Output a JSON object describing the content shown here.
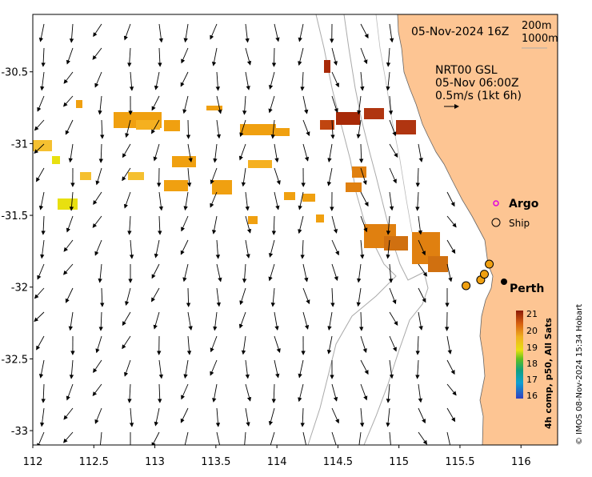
{
  "map": {
    "date_label": "05-Nov-2024 16Z",
    "contour_200": "200m",
    "contour_1000": "1000m",
    "current_source": "NRT00 GSL",
    "current_time": "05-Nov 06:00Z",
    "current_scale": "0.5m/s (1kt 6h)",
    "argo_label": "Argo",
    "ship_label": "Ship",
    "city_label": "Perth",
    "colorbar_title": "4h comp, p50, All Sats",
    "colorbar_ticks": [
      "21",
      "20",
      "19",
      "18",
      "17",
      "16"
    ],
    "credit": "© IMOS 08-Nov-2024 15:34 Hobart",
    "colors": {
      "land": "#fdc593",
      "sst_warm": "#f0a010",
      "sst_hot": "#c85a10",
      "sst_dark": "#8b1a08",
      "sst_yellow": "#e8e010",
      "argo": "#e000e0"
    }
  },
  "axes": {
    "x_ticks": [
      "112",
      "112.5",
      "113",
      "113.5",
      "114",
      "114.5",
      "115",
      "115.5",
      "116"
    ],
    "y_ticks": [
      "-30.5",
      "-31",
      "-31.5",
      "-32",
      "-32.5",
      "-33"
    ],
    "xlim": [
      112,
      116.3
    ],
    "ylim": [
      -33.1,
      -30.1
    ]
  },
  "ships": [
    {
      "lon": 115.55,
      "lat": -31.99
    },
    {
      "lon": 115.67,
      "lat": -31.95
    },
    {
      "lon": 115.7,
      "lat": -31.91
    },
    {
      "lon": 115.74,
      "lat": -31.84
    }
  ],
  "perth_marker": {
    "lon": 115.87,
    "lat": -31.95
  }
}
